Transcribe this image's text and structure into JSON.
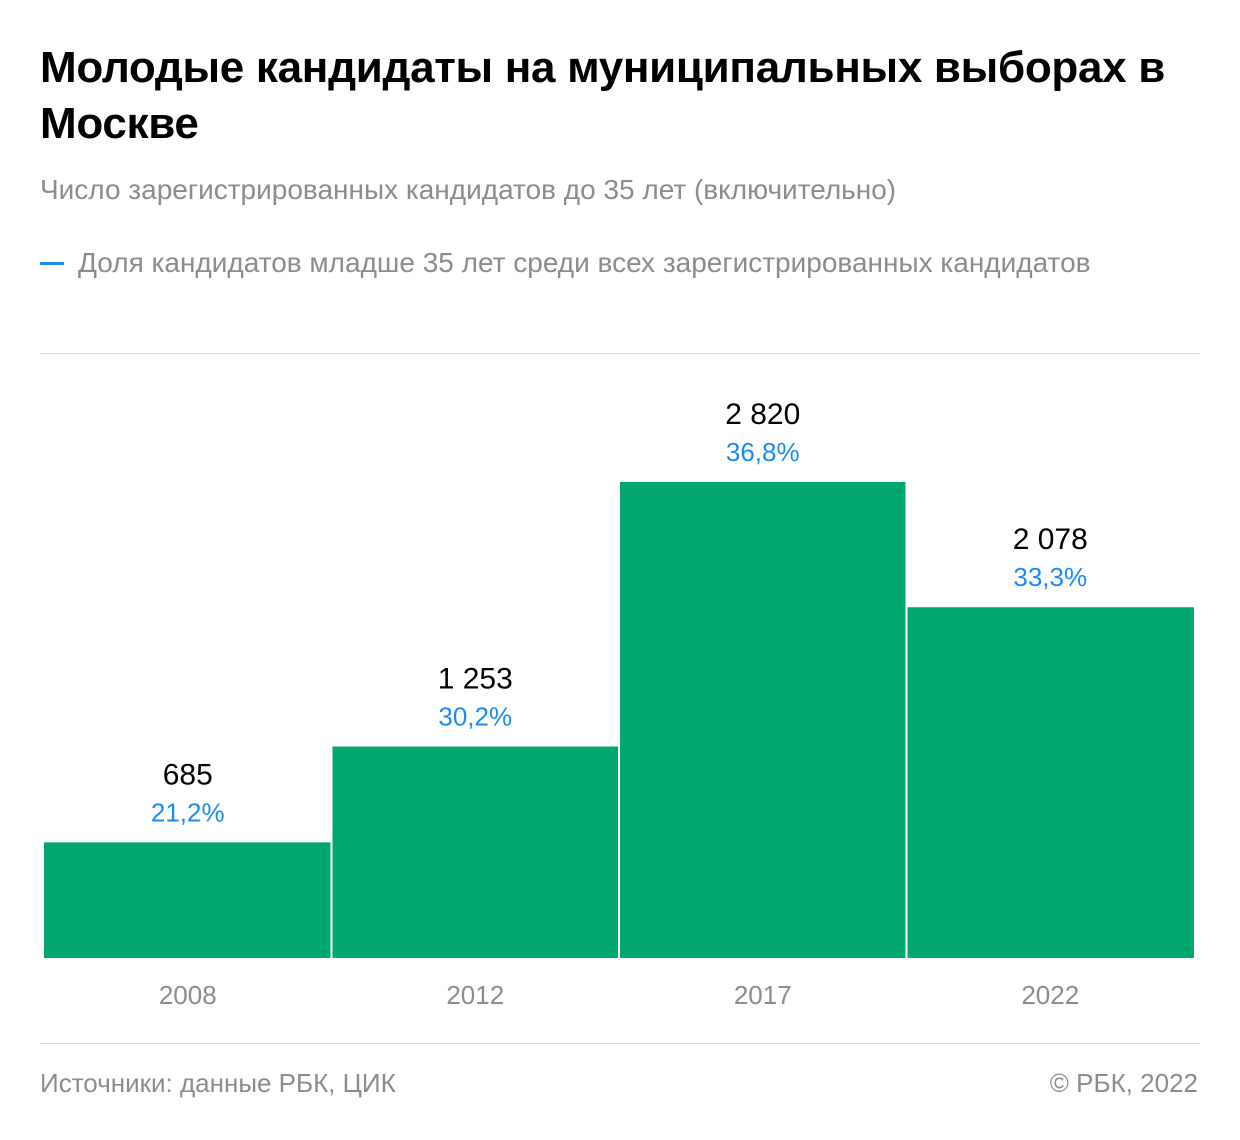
{
  "title": "Молодые кандидаты на муниципальных выборах в Москве",
  "subtitle": "Число зарегистрированных кандидатов до 35 лет (включительно)",
  "legend": {
    "label": "Доля кандидатов младше 35 лет среди всех зарегистрированных кандидатов",
    "color": "#1a8cf0"
  },
  "footer": {
    "source": "Источники: данные РБК, ЦИК",
    "copyright": "© РБК, 2022"
  },
  "colors": {
    "bar": "#00a86f",
    "value_label": "#000000",
    "share_label": "#1a8cf0",
    "axis_label": "#8c8c8c"
  },
  "chart_data": {
    "type": "bar",
    "categories": [
      "2008",
      "2012",
      "2017",
      "2022"
    ],
    "series": [
      {
        "values": [
          685,
          1253,
          2820,
          2078
        ],
        "labels": [
          "685",
          "1 253",
          "2 820",
          "2 078"
        ]
      },
      {
        "name": "Доля кандидатов младше 35 лет среди всех зарегистрированных кандидатов",
        "values": [
          21.2,
          30.2,
          36.8,
          33.3
        ],
        "labels": [
          "21,2%",
          "30,2%",
          "36,8%",
          "33,3%"
        ]
      }
    ],
    "title": "Молодые кандидаты на муниципальных выборах в Москве",
    "subtitle": "Число зарегистрированных кандидатов до 35 лет (включительно)",
    "xlabel": "",
    "ylabel": "",
    "ylim": [
      0,
      2820
    ],
    "grid": false,
    "legend_position": "top-left"
  }
}
